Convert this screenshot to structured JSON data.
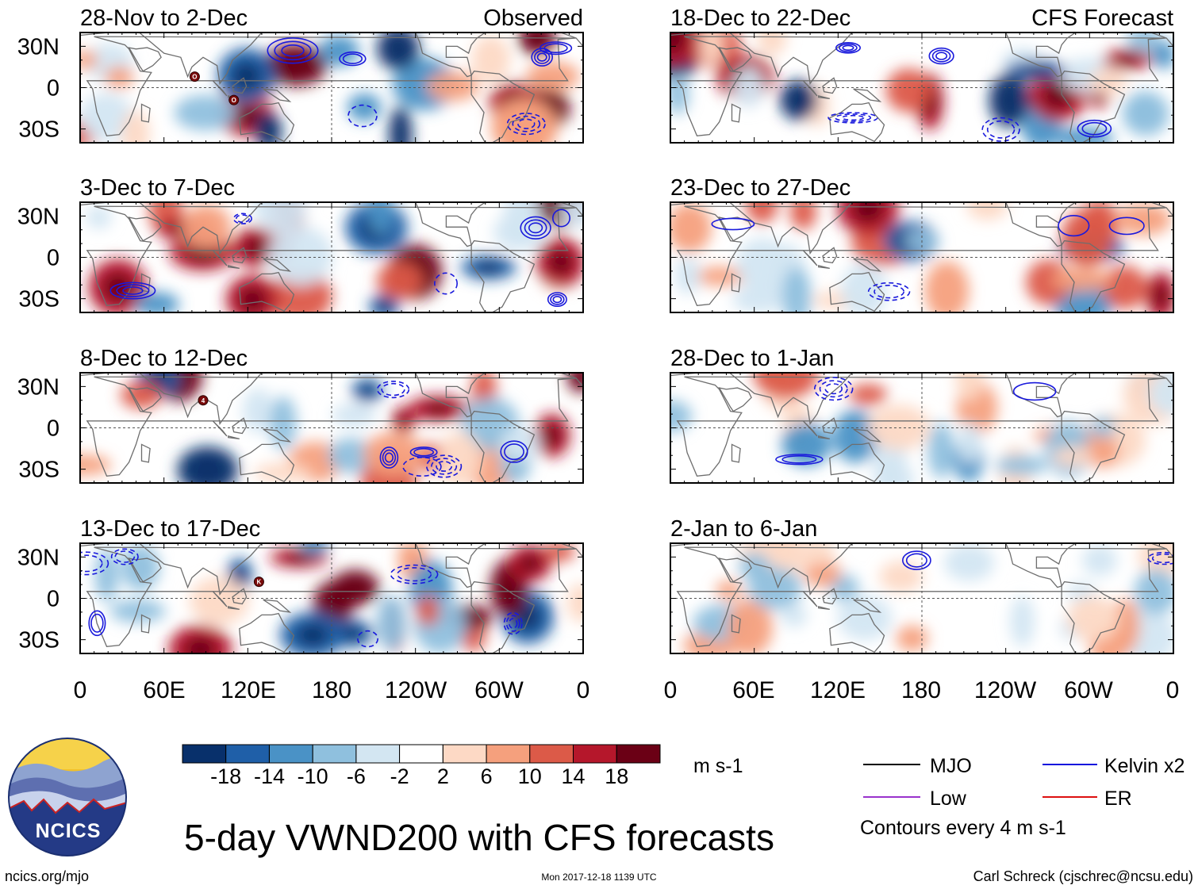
{
  "title": "5-day VWND200 with CFS forecasts",
  "footer": {
    "left": "ncics.org/mjo",
    "center": "Mon 2017-12-18 1139 UTC",
    "right": "Carl Schreck (cjschrec@ncsu.edu)"
  },
  "logo": {
    "text": "NCICS"
  },
  "colorbar": {
    "unit": "m s-1",
    "colors": [
      "#08306b",
      "#1f5fa8",
      "#4a92c6",
      "#8fc0de",
      "#d3e6f2",
      "#ffffff",
      "#fdd9c5",
      "#f5a07d",
      "#dc5a48",
      "#b5172b",
      "#6b0015"
    ],
    "tick_labels": [
      "-18",
      "-14",
      "-10",
      "-6",
      "-2",
      "2",
      "6",
      "10",
      "14",
      "18"
    ]
  },
  "legend": {
    "items": [
      {
        "label": "MJO",
        "color": "#000000"
      },
      {
        "label": "Kelvin x2",
        "color": "#1010dd"
      },
      {
        "label": "Low",
        "color": "#9933cc"
      },
      {
        "label": "ER",
        "color": "#dd1010"
      }
    ],
    "note": "Contours every 4 m s-1"
  },
  "axes": {
    "y_ticks": [
      "30N",
      "0",
      "30S"
    ],
    "x_ticks": [
      "0",
      "60E",
      "120E",
      "180",
      "120W",
      "60W",
      "0"
    ]
  },
  "chart_data": {
    "type": "heatmap",
    "variable": "VWND200",
    "columns": [
      {
        "label": "Observed",
        "panels": [
          "28-Nov to 2-Dec",
          "3-Dec to 7-Dec",
          "8-Dec to 12-Dec",
          "13-Dec to 17-Dec"
        ]
      },
      {
        "label": "CFS Forecast",
        "panels": [
          "18-Dec to 22-Dec",
          "23-Dec to 27-Dec",
          "28-Dec to 1-Jan",
          "2-Jan to 6-Jan"
        ]
      }
    ],
    "x_range_deg_lon": [
      0,
      360
    ],
    "y_range_deg_lat": [
      -40,
      40
    ],
    "storm_markers": {
      "28-Nov to 2-Dec": [
        "O",
        "O"
      ],
      "8-Dec to 12-Dec": [
        "4"
      ],
      "13-Dec to 17-Dec": [
        "K"
      ]
    }
  }
}
